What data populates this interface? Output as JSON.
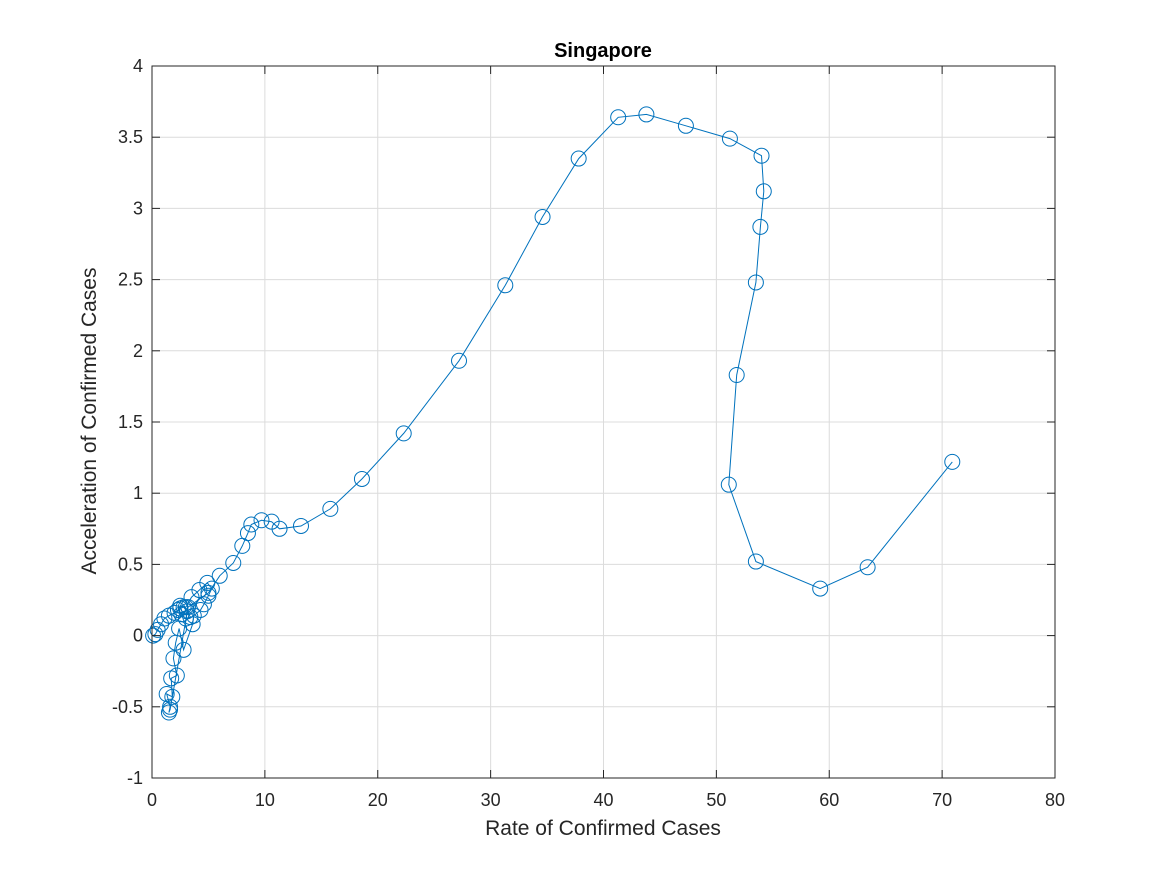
{
  "chart_data": {
    "type": "line",
    "title": "Singapore",
    "xlabel": "Rate of Confirmed Cases",
    "ylabel": "Acceleration of Confirmed Cases",
    "xlim": [
      0,
      80
    ],
    "ylim": [
      -1,
      4
    ],
    "xticks": [
      0,
      10,
      20,
      30,
      40,
      50,
      60,
      70,
      80
    ],
    "yticks": [
      -1,
      -0.5,
      0,
      0.5,
      1,
      1.5,
      2,
      2.5,
      3,
      3.5,
      4
    ],
    "grid": true,
    "marker": "circle",
    "series_color": "#0072BD",
    "series": [
      {
        "name": "Singapore",
        "points": [
          [
            0.1,
            0.0
          ],
          [
            0.3,
            0.01
          ],
          [
            0.5,
            0.04
          ],
          [
            0.8,
            0.08
          ],
          [
            1.1,
            0.12
          ],
          [
            1.5,
            0.14
          ],
          [
            2.0,
            0.16
          ],
          [
            2.5,
            0.19
          ],
          [
            2.8,
            0.2
          ],
          [
            3.1,
            0.17
          ],
          [
            3.4,
            0.13
          ],
          [
            3.0,
            0.12
          ],
          [
            2.6,
            0.15
          ],
          [
            2.3,
            0.18
          ],
          [
            2.5,
            0.21
          ],
          [
            3.0,
            0.2
          ],
          [
            3.5,
            0.27
          ],
          [
            4.2,
            0.32
          ],
          [
            4.9,
            0.37
          ],
          [
            5.3,
            0.33
          ],
          [
            5.0,
            0.28
          ],
          [
            4.6,
            0.22
          ],
          [
            4.3,
            0.18
          ],
          [
            3.7,
            0.14
          ],
          [
            3.6,
            0.08
          ],
          [
            2.8,
            -0.1
          ],
          [
            2.4,
            0.05
          ],
          [
            2.1,
            -0.05
          ],
          [
            1.9,
            -0.16
          ],
          [
            2.2,
            -0.28
          ],
          [
            1.7,
            -0.3
          ],
          [
            1.8,
            -0.43
          ],
          [
            1.3,
            -0.41
          ],
          [
            1.6,
            -0.5
          ],
          [
            1.5,
            -0.54
          ],
          [
            1.6,
            -0.52
          ],
          [
            3.2,
            0.2
          ],
          [
            5.0,
            0.3
          ],
          [
            6.0,
            0.42
          ],
          [
            7.2,
            0.51
          ],
          [
            8.0,
            0.63
          ],
          [
            8.5,
            0.72
          ],
          [
            8.8,
            0.78
          ],
          [
            9.7,
            0.81
          ],
          [
            10.6,
            0.8
          ],
          [
            11.3,
            0.75
          ],
          [
            13.2,
            0.77
          ],
          [
            15.8,
            0.89
          ],
          [
            18.6,
            1.1
          ],
          [
            22.3,
            1.42
          ],
          [
            27.2,
            1.93
          ],
          [
            31.3,
            2.46
          ],
          [
            34.6,
            2.94
          ],
          [
            37.8,
            3.35
          ],
          [
            41.3,
            3.64
          ],
          [
            43.8,
            3.66
          ],
          [
            47.3,
            3.58
          ],
          [
            51.2,
            3.49
          ],
          [
            54.0,
            3.37
          ],
          [
            54.2,
            3.12
          ],
          [
            53.9,
            2.87
          ],
          [
            53.5,
            2.48
          ],
          [
            51.8,
            1.83
          ],
          [
            51.1,
            1.06
          ],
          [
            53.5,
            0.52
          ],
          [
            59.2,
            0.33
          ],
          [
            63.4,
            0.48
          ],
          [
            70.9,
            1.22
          ]
        ]
      }
    ]
  }
}
